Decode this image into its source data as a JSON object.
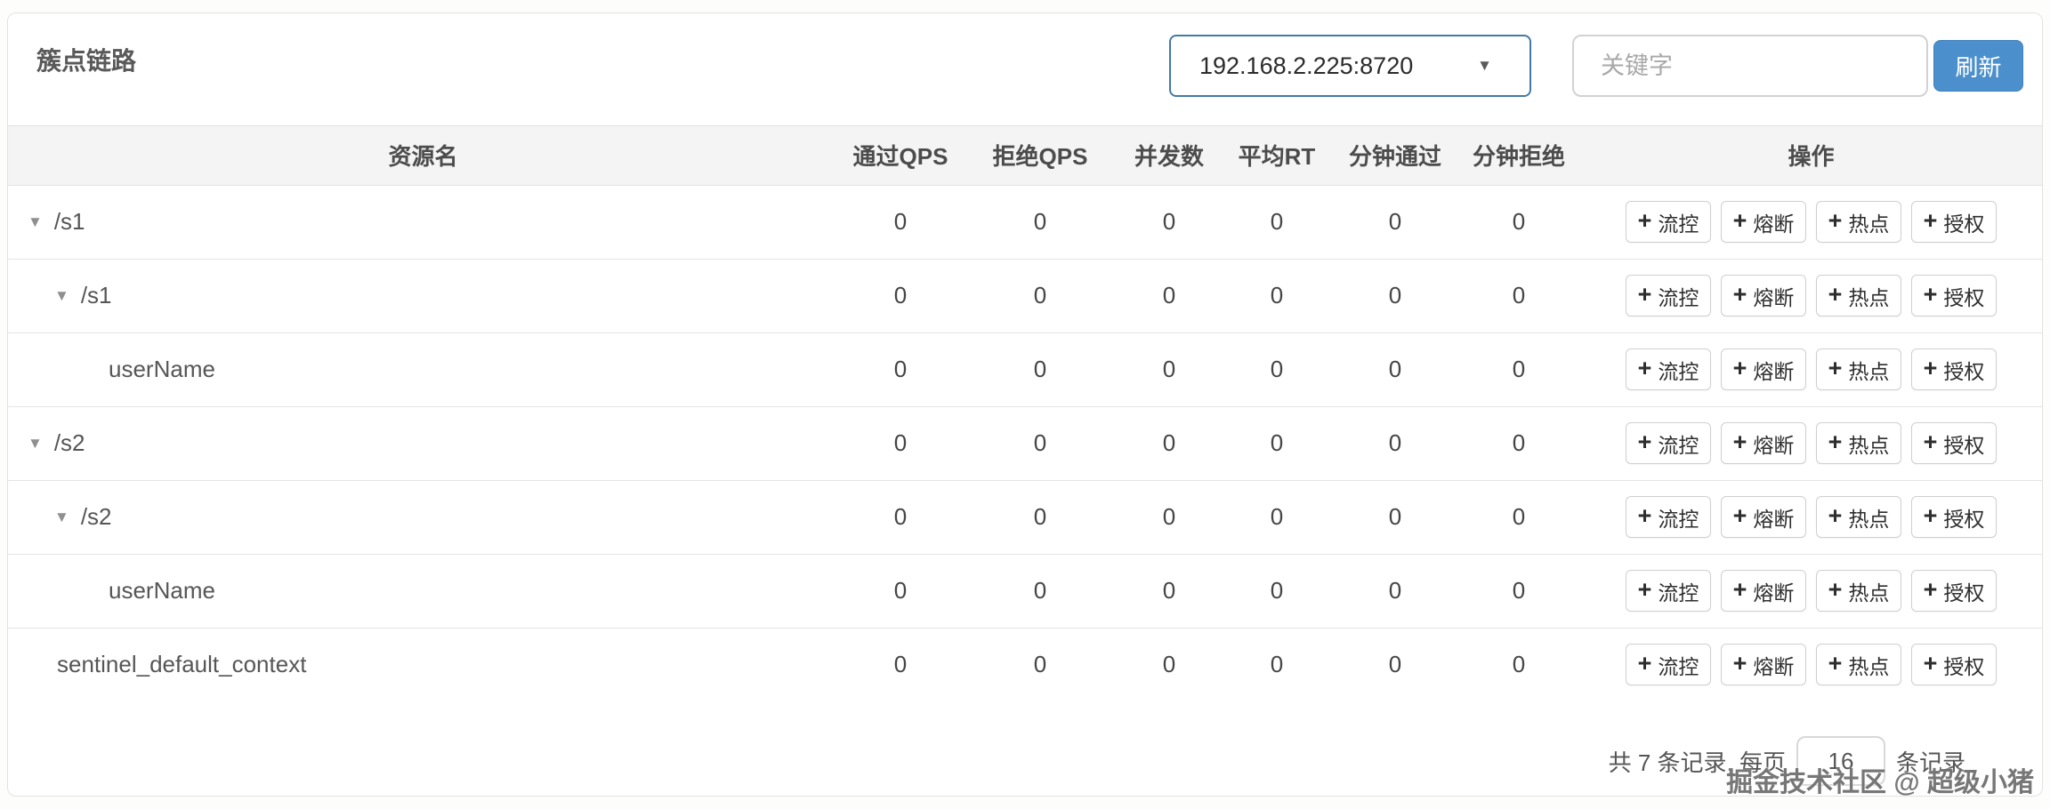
{
  "page": {
    "title": "簇点链路",
    "watermark": "掘金技术社区 @ 超级小猪"
  },
  "toolbar": {
    "machine_select": {
      "value": "192.168.2.225:8720"
    },
    "search": {
      "placeholder": "关键字"
    },
    "refresh_label": "刷新"
  },
  "table": {
    "columns": {
      "resource": "资源名",
      "pass_qps": "通过QPS",
      "reject_qps": "拒绝QPS",
      "concurrency": "并发数",
      "avg_rt": "平均RT",
      "minute_pass": "分钟通过",
      "minute_reject": "分钟拒绝",
      "operations": "操作"
    },
    "action_labels": {
      "plus": "+",
      "flow": "流控",
      "degrade": "熔断",
      "hotspot": "热点",
      "auth": "授权"
    },
    "rows": [
      {
        "resource": "/s1",
        "pass_qps": "0",
        "reject_qps": "0",
        "concurrency": "0",
        "avg_rt": "0",
        "minute_pass": "0",
        "minute_reject": "0"
      },
      {
        "resource": "/s1",
        "pass_qps": "0",
        "reject_qps": "0",
        "concurrency": "0",
        "avg_rt": "0",
        "minute_pass": "0",
        "minute_reject": "0"
      },
      {
        "resource": "userName",
        "pass_qps": "0",
        "reject_qps": "0",
        "concurrency": "0",
        "avg_rt": "0",
        "minute_pass": "0",
        "minute_reject": "0"
      },
      {
        "resource": "/s2",
        "pass_qps": "0",
        "reject_qps": "0",
        "concurrency": "0",
        "avg_rt": "0",
        "minute_pass": "0",
        "minute_reject": "0"
      },
      {
        "resource": "/s2",
        "pass_qps": "0",
        "reject_qps": "0",
        "concurrency": "0",
        "avg_rt": "0",
        "minute_pass": "0",
        "minute_reject": "0"
      },
      {
        "resource": "userName",
        "pass_qps": "0",
        "reject_qps": "0",
        "concurrency": "0",
        "avg_rt": "0",
        "minute_pass": "0",
        "minute_reject": "0"
      },
      {
        "resource": "sentinel_default_context",
        "pass_qps": "0",
        "reject_qps": "0",
        "concurrency": "0",
        "avg_rt": "0",
        "minute_pass": "0",
        "minute_reject": "0"
      }
    ]
  },
  "pagination": {
    "total_text": "共 7 条记录, 每页",
    "page_size": "16",
    "suffix_text": "条记录"
  },
  "colors": {
    "accent_blue": "#4b90cc",
    "select_border": "#4379a7",
    "header_bg": "#f4f4f5"
  }
}
